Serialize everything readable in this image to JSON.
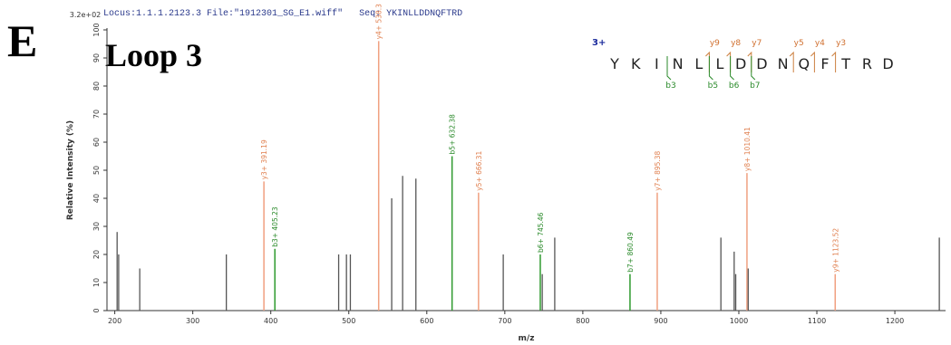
{
  "panel_letter": "E",
  "panel_title": "Loop 3",
  "header": {
    "locus_label": "Locus:1.1.1.2123.3",
    "file_label": "File:\"1912301_SG_E1.wiff\"",
    "seq_label": "Seq:",
    "seq_value": "YKINLLDDNQFTRD"
  },
  "peptide": {
    "charge": "3+",
    "residues": [
      "Y",
      "K",
      "I",
      "N",
      "L",
      "L",
      "D",
      "D",
      "N",
      "Q",
      "F",
      "T",
      "R",
      "D"
    ],
    "y_ions": [
      {
        "label": "y9",
        "after": 5
      },
      {
        "label": "y8",
        "after": 6
      },
      {
        "label": "y7",
        "after": 7
      },
      {
        "label": "y5",
        "after": 9
      },
      {
        "label": "y4",
        "after": 10
      },
      {
        "label": "y3",
        "after": 11
      }
    ],
    "b_ions": [
      {
        "label": "b3",
        "after": 3
      },
      {
        "label": "b5",
        "after": 5
      },
      {
        "label": "b6",
        "after": 6
      },
      {
        "label": "b7",
        "after": 7
      }
    ]
  },
  "chart_data": {
    "type": "bar",
    "xlabel": "m/z",
    "ylabel": "Relative Intensity (%)",
    "y_scale_label": "3.2e+02",
    "xlim": [
      190,
      1265
    ],
    "ylim": [
      0,
      100
    ],
    "xticks": [
      200,
      300,
      400,
      500,
      600,
      700,
      800,
      900,
      1000,
      1100,
      1200
    ],
    "yticks": [
      0,
      10,
      20,
      30,
      40,
      50,
      60,
      70,
      80,
      90,
      100
    ],
    "colors": {
      "unassigned": "#555555",
      "y": "#f0a080",
      "b": "#2e9a2e",
      "label_y": "#e08050",
      "label_b": "#2a8a2a"
    },
    "peaks": [
      {
        "mz": 203,
        "intensity": 28,
        "type": "unassigned"
      },
      {
        "mz": 205,
        "intensity": 20,
        "type": "unassigned"
      },
      {
        "mz": 232,
        "intensity": 15,
        "type": "unassigned"
      },
      {
        "mz": 343,
        "intensity": 20,
        "type": "unassigned"
      },
      {
        "mz": 391.19,
        "intensity": 46,
        "type": "y",
        "label": "y3+ 391.19"
      },
      {
        "mz": 405.23,
        "intensity": 22,
        "type": "b",
        "label": "b3+ 405.23"
      },
      {
        "mz": 487,
        "intensity": 20,
        "type": "unassigned"
      },
      {
        "mz": 497,
        "intensity": 20,
        "type": "unassigned"
      },
      {
        "mz": 502,
        "intensity": 20,
        "type": "unassigned"
      },
      {
        "mz": 538.3,
        "intensity": 96,
        "type": "y",
        "label": "y4+ 538.3"
      },
      {
        "mz": 555,
        "intensity": 40,
        "type": "unassigned"
      },
      {
        "mz": 569,
        "intensity": 48,
        "type": "unassigned"
      },
      {
        "mz": 586,
        "intensity": 47,
        "type": "unassigned"
      },
      {
        "mz": 632.38,
        "intensity": 55,
        "type": "b",
        "label": "b5+ 632.38"
      },
      {
        "mz": 666.31,
        "intensity": 42,
        "type": "y",
        "label": "y5+ 666.31"
      },
      {
        "mz": 698,
        "intensity": 20,
        "type": "unassigned"
      },
      {
        "mz": 745.46,
        "intensity": 20,
        "type": "b",
        "label": "b6+ 745.46"
      },
      {
        "mz": 748,
        "intensity": 13,
        "type": "unassigned"
      },
      {
        "mz": 764,
        "intensity": 26,
        "type": "unassigned"
      },
      {
        "mz": 860.49,
        "intensity": 13,
        "type": "b",
        "label": "b7+ 860.49"
      },
      {
        "mz": 895.38,
        "intensity": 42,
        "type": "y",
        "label": "y7+ 895.38"
      },
      {
        "mz": 977,
        "intensity": 26,
        "type": "unassigned"
      },
      {
        "mz": 994,
        "intensity": 21,
        "type": "unassigned"
      },
      {
        "mz": 996,
        "intensity": 13,
        "type": "unassigned"
      },
      {
        "mz": 1010.41,
        "intensity": 49,
        "type": "y",
        "label": "y8+ 1010.41"
      },
      {
        "mz": 1012,
        "intensity": 15,
        "type": "unassigned"
      },
      {
        "mz": 1123.52,
        "intensity": 13,
        "type": "y",
        "label": "y9+ 1123.52"
      },
      {
        "mz": 1257,
        "intensity": 26,
        "type": "unassigned"
      }
    ]
  }
}
